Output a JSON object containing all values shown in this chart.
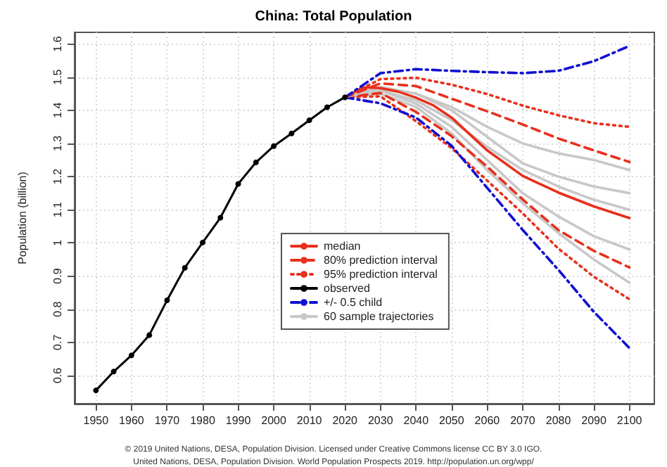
{
  "chart_data": {
    "type": "line",
    "title": "China: Total Population",
    "ylabel": "Population (billion)",
    "xlim": [
      1944,
      2107
    ],
    "ylim": [
      0.515,
      1.635
    ],
    "xticks": [
      1950,
      1960,
      1970,
      1980,
      1990,
      2000,
      2010,
      2020,
      2030,
      2040,
      2050,
      2060,
      2070,
      2080,
      2090,
      2100
    ],
    "yticks": [
      0.6,
      0.7,
      0.8,
      0.9,
      1,
      1.1,
      1.2,
      1.3,
      1.4,
      1.5,
      1.6
    ],
    "grid": true,
    "legend": "center",
    "annotations": [
      "© 2019 United Nations, DESA, Population Division. Licensed under Creative Commons license CC BY 3.0 IGO.",
      "United Nations, DESA, Population Division. World Population Prospects 2019. http://population.un.org/wpp/"
    ],
    "series": [
      {
        "name": "60 sample trajectories",
        "color": "#c8c8c8",
        "line_style": "solid",
        "marker": "none",
        "x": [
          2020,
          2030,
          2040,
          2050,
          2060,
          2070,
          2080,
          2090,
          2100
        ],
        "values": [
          1.439,
          1.47,
          1.45,
          1.41,
          1.35,
          1.3,
          1.27,
          1.25,
          1.22
        ]
      },
      {
        "color": "#c8c8c8",
        "line_style": "solid",
        "marker": "none",
        "x": [
          2020,
          2030,
          2040,
          2050,
          2060,
          2070,
          2080,
          2090,
          2100
        ],
        "values": [
          1.439,
          1.46,
          1.43,
          1.37,
          1.29,
          1.22,
          1.17,
          1.13,
          1.1
        ]
      },
      {
        "color": "#c8c8c8",
        "line_style": "solid",
        "marker": "none",
        "x": [
          2020,
          2030,
          2040,
          2050,
          2060,
          2070,
          2080,
          2090,
          2100
        ],
        "values": [
          1.439,
          1.46,
          1.42,
          1.35,
          1.25,
          1.15,
          1.08,
          1.02,
          0.98
        ]
      },
      {
        "color": "#c8c8c8",
        "line_style": "solid",
        "marker": "none",
        "x": [
          2020,
          2030,
          2040,
          2050,
          2060,
          2070,
          2080,
          2090,
          2100
        ],
        "values": [
          1.439,
          1.47,
          1.45,
          1.4,
          1.32,
          1.24,
          1.2,
          1.17,
          1.15
        ]
      },
      {
        "color": "#c8c8c8",
        "line_style": "solid",
        "marker": "none",
        "x": [
          2020,
          2030,
          2040,
          2050,
          2060,
          2070,
          2080,
          2090,
          2100
        ],
        "values": [
          1.439,
          1.45,
          1.41,
          1.33,
          1.22,
          1.12,
          1.03,
          0.95,
          0.88
        ]
      },
      {
        "name": "median",
        "color": "#e8301c",
        "line_style": "solid",
        "marker": "none",
        "x": [
          2020,
          2025,
          2030,
          2035,
          2040,
          2045,
          2050,
          2060,
          2070,
          2080,
          2090,
          2100
        ],
        "values": [
          1.439,
          1.469,
          1.467,
          1.456,
          1.438,
          1.414,
          1.378,
          1.279,
          1.202,
          1.152,
          1.11,
          1.075
        ]
      },
      {
        "name": "80% prediction interval",
        "color": "#e8301c",
        "line_style": "dashed",
        "marker": "none",
        "x": [
          2020,
          2030,
          2040,
          2050,
          2060,
          2070,
          2080,
          2090,
          2100
        ],
        "values": [
          1.439,
          1.481,
          1.473,
          1.435,
          1.397,
          1.357,
          1.315,
          1.279,
          1.244
        ]
      },
      {
        "color": "#e8301c",
        "line_style": "dashed",
        "marker": "none",
        "x": [
          2020,
          2030,
          2040,
          2050,
          2060,
          2070,
          2080,
          2090,
          2100
        ],
        "values": [
          1.439,
          1.452,
          1.395,
          1.322,
          1.23,
          1.131,
          1.039,
          0.976,
          0.926
        ]
      },
      {
        "name": "95% prediction interval",
        "color": "#e8301c",
        "line_style": "dotted",
        "marker": "none",
        "x": [
          2020,
          2030,
          2040,
          2050,
          2060,
          2070,
          2080,
          2090,
          2100
        ],
        "values": [
          1.439,
          1.494,
          1.498,
          1.477,
          1.449,
          1.414,
          1.385,
          1.361,
          1.35
        ]
      },
      {
        "color": "#e8301c",
        "line_style": "dotted",
        "marker": "none",
        "x": [
          2020,
          2030,
          2040,
          2050,
          2060,
          2070,
          2080,
          2090,
          2100
        ],
        "values": [
          1.439,
          1.442,
          1.367,
          1.286,
          1.188,
          1.089,
          0.983,
          0.898,
          0.83
        ]
      },
      {
        "name": "observed",
        "color": "#000000",
        "line_style": "solid",
        "marker": "circle",
        "x": [
          1950,
          1955,
          1960,
          1965,
          1970,
          1975,
          1980,
          1985,
          1990,
          1995,
          2000,
          2005,
          2010,
          2015,
          2020
        ],
        "values": [
          0.555,
          0.612,
          0.661,
          0.722,
          0.827,
          0.925,
          1.001,
          1.076,
          1.178,
          1.243,
          1.292,
          1.33,
          1.37,
          1.409,
          1.439
        ]
      },
      {
        "name": "+/- 0.5 child",
        "color": "#1010d0",
        "line_style": "dashdot",
        "marker": "none",
        "x": [
          2020,
          2030,
          2040,
          2050,
          2060,
          2070,
          2080,
          2090,
          2100
        ],
        "values": [
          1.439,
          1.512,
          1.524,
          1.519,
          1.515,
          1.512,
          1.519,
          1.548,
          1.594
        ]
      },
      {
        "color": "#1010d0",
        "line_style": "dashdot",
        "marker": "none",
        "x": [
          2020,
          2030,
          2040,
          2050,
          2060,
          2070,
          2080,
          2090,
          2100
        ],
        "values": [
          1.439,
          1.421,
          1.378,
          1.293,
          1.166,
          1.039,
          0.919,
          0.792,
          0.683
        ]
      }
    ]
  }
}
